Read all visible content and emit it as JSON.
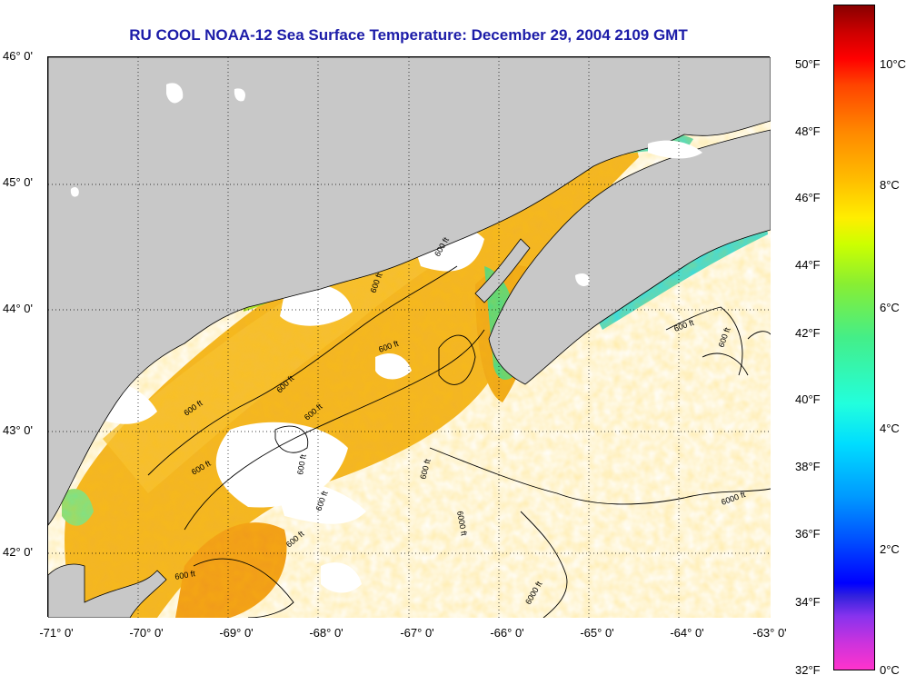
{
  "title": "RU COOL  NOAA-12  Sea Surface Temperature:  December 29, 2004 2109 GMT",
  "latitude_labels": [
    "46° 0'",
    "45° 0'",
    "44° 0'",
    "43° 0'",
    "42° 0'"
  ],
  "longitude_labels": [
    "-71° 0'",
    "-70° 0'",
    "-69° 0'",
    "-68° 0'",
    "-67° 0'",
    "-66° 0'",
    "-65° 0'",
    "-64° 0'",
    "-63° 0'"
  ],
  "depth_contours": [
    "600 ft",
    "600 ft",
    "600 ft",
    "600 ft",
    "600 ft",
    "600 ft",
    "600 ft",
    "600 ft",
    "600 ft",
    "600 ft",
    "600 ft",
    "600 ft",
    "600 ft",
    "600 ft",
    "6000 ft",
    "6000 ft",
    "6000 ft"
  ],
  "colorbar": {
    "fahrenheit": [
      "50°F",
      "48°F",
      "46°F",
      "44°F",
      "42°F",
      "40°F",
      "38°F",
      "36°F",
      "34°F",
      "32°F"
    ],
    "celsius": [
      "10°C",
      "8°C",
      "6°C",
      "4°C",
      "2°C",
      "0°C"
    ]
  },
  "colors": {
    "land": "#c8c8c8",
    "cloud": "#ffffff",
    "title": "#1c1ca8",
    "warm": "#f5b52a",
    "cool": "#22d6e8"
  }
}
